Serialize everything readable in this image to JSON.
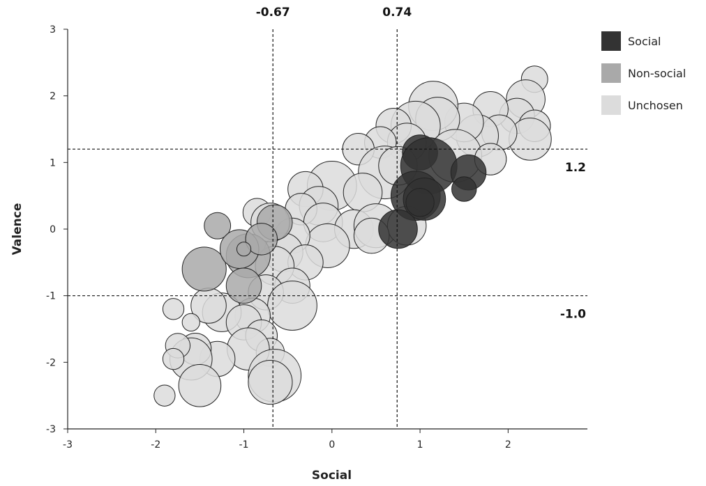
{
  "chart_data": {
    "type": "scatter",
    "title": "",
    "xlabel": "Social",
    "ylabel": "Valence",
    "xlim": [
      -3,
      2.9
    ],
    "ylim": [
      -3,
      3
    ],
    "xticks": [
      "-3",
      "-2",
      "-1",
      "0",
      "1",
      "2"
    ],
    "yticks": [
      "-3",
      "-2",
      "-1",
      "0",
      "1",
      "2",
      "3"
    ],
    "grid": false,
    "legend_position": "top-right",
    "reference_lines": {
      "vertical": [
        {
          "value": -0.67,
          "label": "-0.67"
        },
        {
          "value": 0.74,
          "label": "0.74"
        }
      ],
      "horizontal": [
        {
          "value": 1.2,
          "label": "1.2"
        },
        {
          "value": -1.0,
          "label": "-1.0"
        }
      ]
    },
    "series": [
      {
        "name": "Unchosen",
        "color": "#dcdcdc",
        "points": [
          {
            "x": 2.3,
            "y": 2.25,
            "size": 0.15
          },
          {
            "x": 2.2,
            "y": 1.95,
            "size": 0.22
          },
          {
            "x": 2.1,
            "y": 1.7,
            "size": 0.2
          },
          {
            "x": 2.3,
            "y": 1.55,
            "size": 0.18
          },
          {
            "x": 2.25,
            "y": 1.35,
            "size": 0.24
          },
          {
            "x": 1.8,
            "y": 1.8,
            "size": 0.2
          },
          {
            "x": 1.9,
            "y": 1.45,
            "size": 0.2
          },
          {
            "x": 1.65,
            "y": 1.4,
            "size": 0.24
          },
          {
            "x": 1.5,
            "y": 1.6,
            "size": 0.22
          },
          {
            "x": 1.15,
            "y": 1.85,
            "size": 0.28
          },
          {
            "x": 1.2,
            "y": 1.65,
            "size": 0.25
          },
          {
            "x": 0.95,
            "y": 1.55,
            "size": 0.28
          },
          {
            "x": 0.7,
            "y": 1.55,
            "size": 0.2
          },
          {
            "x": 0.85,
            "y": 1.3,
            "size": 0.22
          },
          {
            "x": 1.4,
            "y": 1.1,
            "size": 0.3
          },
          {
            "x": 1.8,
            "y": 1.05,
            "size": 0.18
          },
          {
            "x": 0.55,
            "y": 1.3,
            "size": 0.18
          },
          {
            "x": 0.3,
            "y": 1.2,
            "size": 0.18
          },
          {
            "x": 0.6,
            "y": 0.85,
            "size": 0.3
          },
          {
            "x": 0.75,
            "y": 0.95,
            "size": 0.22
          },
          {
            "x": 0.0,
            "y": 0.65,
            "size": 0.28
          },
          {
            "x": 0.35,
            "y": 0.55,
            "size": 0.22
          },
          {
            "x": -0.3,
            "y": 0.6,
            "size": 0.2
          },
          {
            "x": -0.15,
            "y": 0.35,
            "size": 0.22
          },
          {
            "x": -0.35,
            "y": 0.3,
            "size": 0.18
          },
          {
            "x": -0.1,
            "y": 0.1,
            "size": 0.22
          },
          {
            "x": 0.25,
            "y": 0.0,
            "size": 0.22
          },
          {
            "x": 0.5,
            "y": 0.05,
            "size": 0.25
          },
          {
            "x": 0.85,
            "y": 0.05,
            "size": 0.22
          },
          {
            "x": 0.45,
            "y": -0.1,
            "size": 0.2
          },
          {
            "x": -0.05,
            "y": -0.25,
            "size": 0.25
          },
          {
            "x": -0.45,
            "y": -0.1,
            "size": 0.2
          },
          {
            "x": -0.55,
            "y": -0.35,
            "size": 0.22
          },
          {
            "x": -0.3,
            "y": -0.5,
            "size": 0.2
          },
          {
            "x": -0.85,
            "y": 0.25,
            "size": 0.16
          },
          {
            "x": -0.7,
            "y": 0.1,
            "size": 0.22
          },
          {
            "x": -0.65,
            "y": -0.55,
            "size": 0.22
          },
          {
            "x": -0.45,
            "y": -0.85,
            "size": 0.2
          },
          {
            "x": -0.75,
            "y": -0.95,
            "size": 0.2
          },
          {
            "x": -0.45,
            "y": -1.15,
            "size": 0.28
          },
          {
            "x": -0.9,
            "y": -1.3,
            "size": 0.2
          },
          {
            "x": -1.25,
            "y": -1.25,
            "size": 0.22
          },
          {
            "x": -1.4,
            "y": -1.15,
            "size": 0.2
          },
          {
            "x": -1.0,
            "y": -1.4,
            "size": 0.2
          },
          {
            "x": -0.8,
            "y": -1.6,
            "size": 0.18
          },
          {
            "x": -0.7,
            "y": -1.85,
            "size": 0.16
          },
          {
            "x": -0.95,
            "y": -1.8,
            "size": 0.24
          },
          {
            "x": -0.65,
            "y": -2.2,
            "size": 0.3
          },
          {
            "x": -0.7,
            "y": -2.3,
            "size": 0.25
          },
          {
            "x": -1.3,
            "y": -1.95,
            "size": 0.2
          },
          {
            "x": -1.55,
            "y": -1.8,
            "size": 0.18
          },
          {
            "x": -1.6,
            "y": -1.95,
            "size": 0.24
          },
          {
            "x": -1.75,
            "y": -1.75,
            "size": 0.14
          },
          {
            "x": -1.8,
            "y": -1.95,
            "size": 0.12
          },
          {
            "x": -1.6,
            "y": -1.4,
            "size": 0.1
          },
          {
            "x": -1.8,
            "y": -1.2,
            "size": 0.12
          },
          {
            "x": -1.5,
            "y": -2.35,
            "size": 0.24
          },
          {
            "x": -1.9,
            "y": -2.5,
            "size": 0.12
          }
        ]
      },
      {
        "name": "Non-social",
        "color": "#a9a9a9",
        "points": [
          {
            "x": -1.3,
            "y": 0.05,
            "size": 0.15
          },
          {
            "x": -1.45,
            "y": -0.6,
            "size": 0.25
          },
          {
            "x": -0.95,
            "y": -0.4,
            "size": 0.25
          },
          {
            "x": -1.05,
            "y": -0.3,
            "size": 0.22
          },
          {
            "x": -0.65,
            "y": 0.1,
            "size": 0.2
          },
          {
            "x": -0.8,
            "y": -0.15,
            "size": 0.18
          },
          {
            "x": -1.0,
            "y": -0.85,
            "size": 0.2
          },
          {
            "x": -1.0,
            "y": -0.3,
            "size": 0.08
          }
        ]
      },
      {
        "name": "Social",
        "color": "#333333",
        "points": [
          {
            "x": 1.0,
            "y": 1.15,
            "size": 0.2
          },
          {
            "x": 1.1,
            "y": 0.95,
            "size": 0.32
          },
          {
            "x": 1.55,
            "y": 0.85,
            "size": 0.2
          },
          {
            "x": 1.5,
            "y": 0.6,
            "size": 0.14
          },
          {
            "x": 0.95,
            "y": 0.5,
            "size": 0.28
          },
          {
            "x": 1.05,
            "y": 0.45,
            "size": 0.24
          },
          {
            "x": 1.0,
            "y": 0.4,
            "size": 0.16
          },
          {
            "x": 0.75,
            "y": 0.0,
            "size": 0.22
          }
        ]
      }
    ]
  }
}
